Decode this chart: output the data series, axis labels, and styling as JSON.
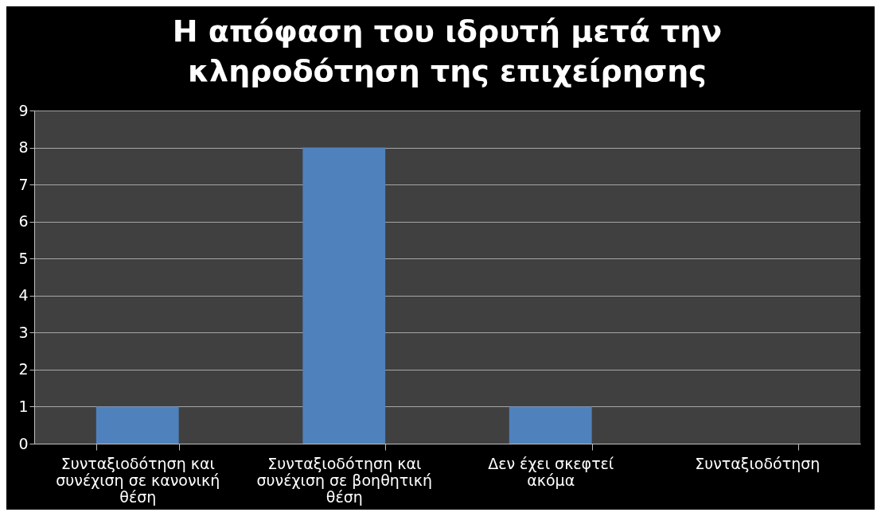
{
  "chart_data": {
    "type": "bar",
    "title": "Η απόφαση του ιδρυτή μετά την κληροδότηση της επιχείρησης",
    "categories": [
      "Συνταξιοδότηση και συνέχιση σε κανονική θέση",
      "Συνταξιοδότηση και συνέχιση σε βοηθητική θέση",
      "Δεν έχει σκεφτεί ακόμα",
      "Συνταξιοδότηση"
    ],
    "values": [
      1,
      8,
      1,
      0
    ],
    "color": "#4f81bd",
    "ylim": [
      0,
      9
    ],
    "yticks": [
      0,
      1,
      2,
      3,
      4,
      5,
      6,
      7,
      8,
      9
    ],
    "grid": true
  }
}
